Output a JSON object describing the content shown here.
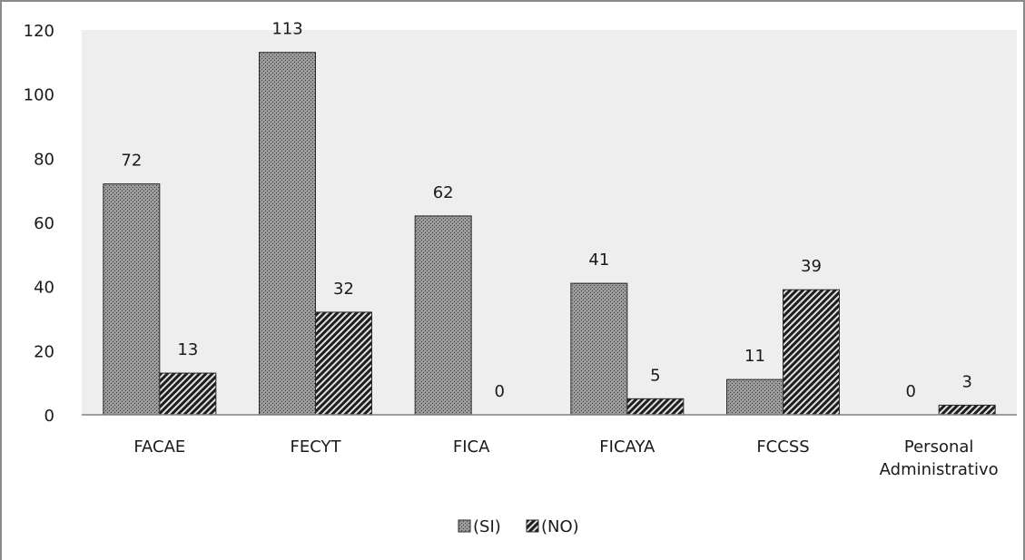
{
  "chart_data": {
    "type": "bar",
    "categories": [
      [
        "FACAE"
      ],
      [
        "FECYT"
      ],
      [
        "FICA"
      ],
      [
        "FICAYA"
      ],
      [
        "FCCSS"
      ],
      [
        "Personal",
        "Administrativo"
      ]
    ],
    "series": [
      {
        "name": "(SI)",
        "values": [
          72,
          113,
          62,
          41,
          11,
          0
        ]
      },
      {
        "name": "(NO)",
        "values": [
          13,
          32,
          0,
          5,
          39,
          3
        ]
      }
    ],
    "ylim": [
      0,
      120
    ],
    "yticks": [
      0,
      20,
      40,
      60,
      80,
      100,
      120
    ],
    "grid": false,
    "plot_background": "#eeeeee",
    "legend_position": "bottom",
    "colors": {
      "si": "#8c8c8c",
      "no": "#3a3a3a"
    }
  }
}
